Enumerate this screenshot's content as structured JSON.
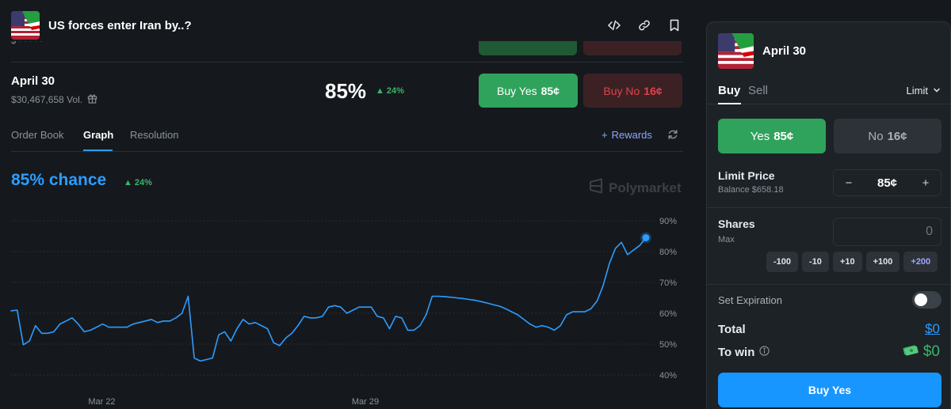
{
  "header": {
    "title": "US forces enter Iran by..?",
    "icons": [
      "embed-code-icon",
      "link-icon",
      "bookmark-icon"
    ]
  },
  "market": {
    "title": "April 30",
    "volume": "$30,467,658 Vol.",
    "percent": "85%",
    "change": "24%",
    "buy_yes": {
      "label": "Buy Yes",
      "price": "85¢"
    },
    "buy_no": {
      "label": "Buy No",
      "price": "16¢"
    }
  },
  "tabs": {
    "items": [
      "Order Book",
      "Graph",
      "Resolution"
    ],
    "active": "Graph",
    "rewards": "Rewards"
  },
  "graph": {
    "chance": "85% chance",
    "change": "24%",
    "watermark": "Polymarket"
  },
  "chart_data": {
    "type": "line",
    "ylim": [
      40,
      90
    ],
    "y_ticks": [
      "90%",
      "80%",
      "70%",
      "60%",
      "50%",
      "40%"
    ],
    "x_ticks": [
      "Mar 22",
      "Mar 29"
    ],
    "grid": true,
    "line_color": "#2d9cff",
    "series": [
      {
        "values": [
          60.8,
          61,
          49.8,
          51,
          56,
          53.5,
          53.5,
          54,
          56.5,
          57.5,
          58.5,
          56.5,
          54,
          54.5,
          55.5,
          56.5,
          55.5,
          55.5,
          55.5,
          55.5,
          56.5,
          57,
          57.5,
          58,
          57,
          57.5,
          57.5,
          58.5,
          60,
          65.5,
          45.5,
          44.5,
          45,
          45.5,
          53,
          54,
          51,
          55,
          58,
          56.5,
          57,
          56,
          55,
          50.5,
          49.5,
          52,
          53.5,
          56,
          59,
          58.5,
          58.5,
          59,
          62,
          62.5,
          62,
          60,
          61,
          62,
          62,
          62,
          59,
          58.5,
          55,
          59,
          58.5,
          54.5,
          54.5,
          56,
          59.5,
          65.5,
          65.5,
          65.4,
          65.2,
          65,
          64.8,
          64.5,
          64.2,
          63.8,
          63.3,
          62.8,
          62.3,
          61.5,
          60.5,
          59.5,
          58,
          56.5,
          55.5,
          56,
          55.5,
          54.5,
          56,
          59.5,
          60.5,
          60.5,
          60.5,
          61.5,
          64,
          69,
          76,
          81,
          83,
          79,
          80.5,
          82,
          84.5
        ]
      }
    ]
  },
  "panel": {
    "market_name": "April 30",
    "tab_buy": "Buy",
    "tab_sell": "Sell",
    "order_type": "Limit",
    "yes": {
      "label": "Yes",
      "price": "85¢"
    },
    "no": {
      "label": "No",
      "price": "16¢"
    },
    "limit_price_label": "Limit Price",
    "balance": "Balance $658.18",
    "minus": "−",
    "limit_price": "85¢",
    "plus": "+",
    "shares_label": "Shares",
    "max_label": "Max",
    "shares_placeholder": "0",
    "quick": [
      "-100",
      "-10",
      "+10",
      "+100",
      "+200"
    ],
    "expiration_label": "Set Expiration",
    "expiration_on": false,
    "total_label": "Total",
    "total_value": "$0",
    "to_win_label": "To win",
    "to_win_value": "$0",
    "submit": "Buy Yes"
  }
}
